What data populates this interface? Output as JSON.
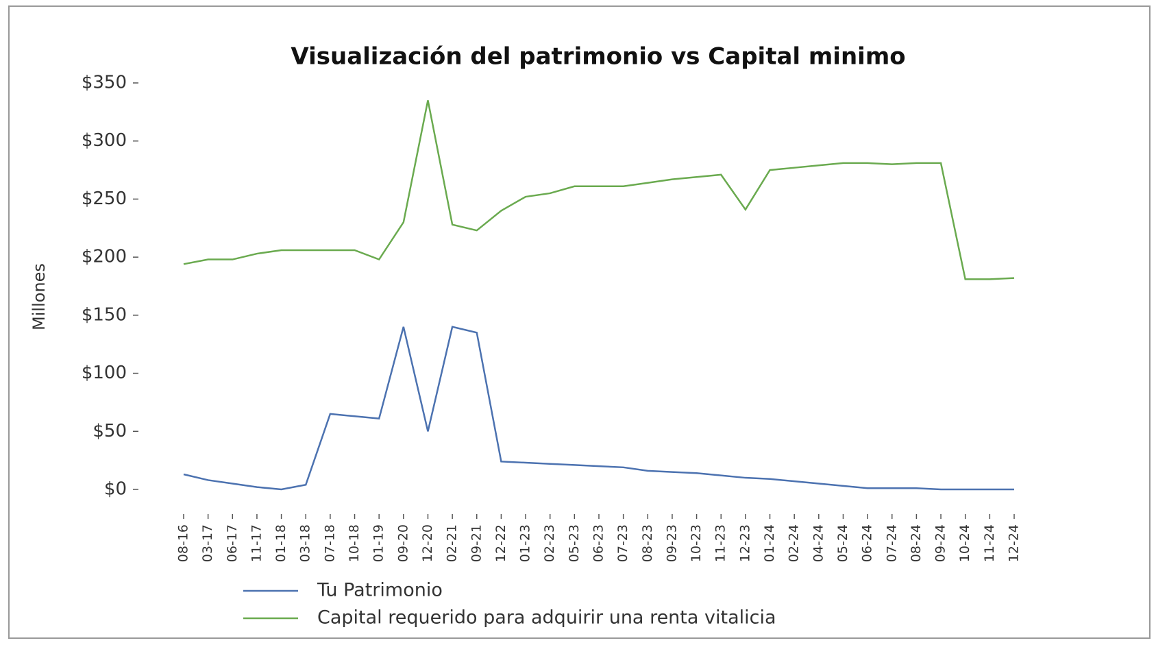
{
  "chart_data": {
    "type": "line",
    "title": "Visualización del patrimonio vs Capital minimo",
    "y_label": "Millones",
    "categories": [
      "08-16",
      "03-17",
      "06-17",
      "11-17",
      "01-18",
      "03-18",
      "07-18",
      "10-18",
      "01-19",
      "09-20",
      "12-20",
      "02-21",
      "09-21",
      "12-22",
      "01-23",
      "02-23",
      "05-23",
      "06-23",
      "07-23",
      "08-23",
      "09-23",
      "10-23",
      "11-23",
      "12-23",
      "01-24",
      "02-24",
      "04-24",
      "05-24",
      "06-24",
      "07-24",
      "08-24",
      "09-24",
      "10-24",
      "11-24",
      "12-24"
    ],
    "series": [
      {
        "name": "Tu Patrimonio",
        "color": "#4c72b0",
        "values": [
          13,
          8,
          5,
          2,
          0,
          4,
          65,
          63,
          61,
          140,
          50,
          140,
          135,
          24,
          23,
          22,
          21,
          20,
          19,
          16,
          15,
          14,
          12,
          10,
          9,
          7,
          5,
          3,
          1,
          1,
          1,
          0,
          0,
          0,
          0
        ]
      },
      {
        "name": "Capital requerido para adquirir una renta vitalicia",
        "color": "#6aaa4f",
        "values": [
          194,
          198,
          198,
          203,
          206,
          206,
          206,
          206,
          198,
          230,
          335,
          228,
          223,
          240,
          252,
          255,
          261,
          261,
          261,
          264,
          267,
          269,
          271,
          241,
          275,
          277,
          279,
          281,
          281,
          280,
          281,
          281,
          181,
          181,
          182
        ]
      }
    ],
    "ylim": [
      0,
      350
    ],
    "yticks": [
      {
        "value": 0,
        "label": "$0"
      },
      {
        "value": 50,
        "label": "$50"
      },
      {
        "value": 100,
        "label": "$100"
      },
      {
        "value": 150,
        "label": "$150"
      },
      {
        "value": 200,
        "label": "$200"
      },
      {
        "value": 250,
        "label": "$250"
      },
      {
        "value": 300,
        "label": "$300"
      },
      {
        "value": 350,
        "label": "$350"
      }
    ],
    "grid": false
  }
}
